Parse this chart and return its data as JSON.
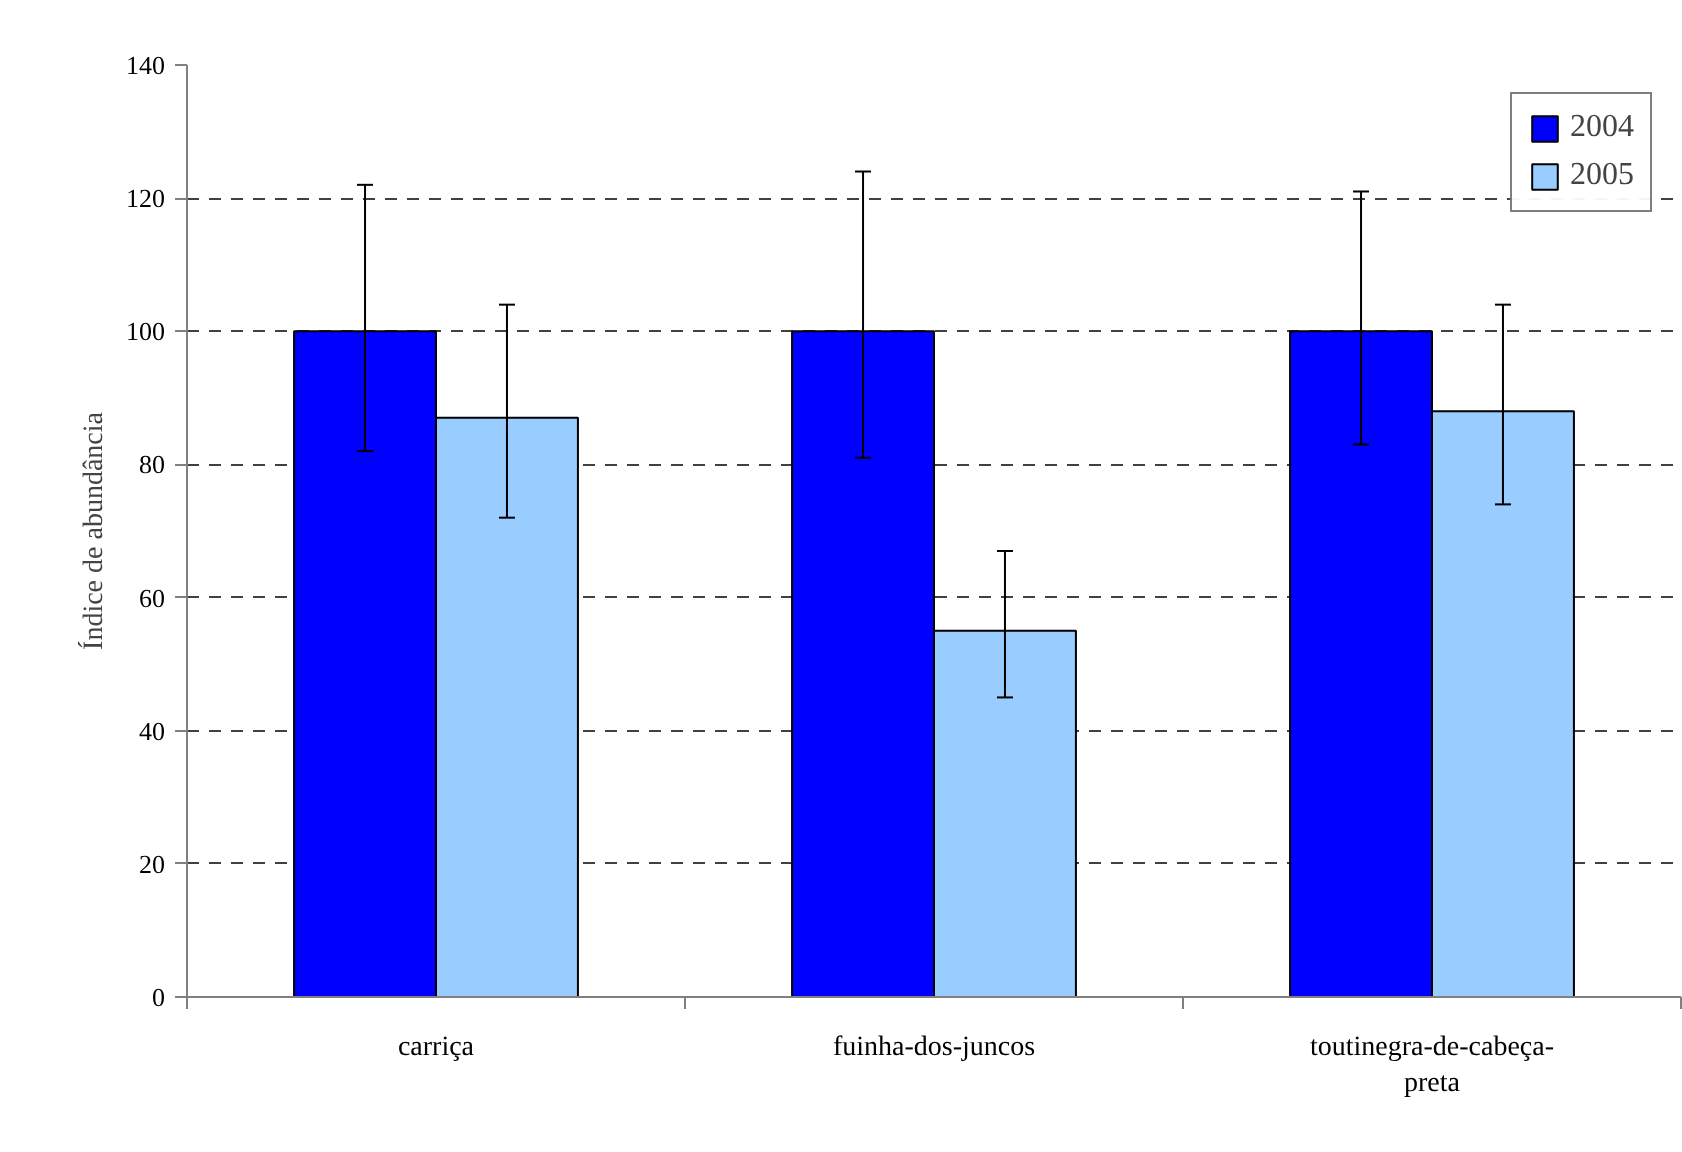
{
  "chart_data": {
    "type": "bar",
    "ylabel": "Índice de abundância",
    "categories": [
      "carriça",
      "fuinha-dos-juncos",
      "toutinegra-de-cabeça-preta"
    ],
    "series": [
      {
        "name": "2004",
        "color": "#0000ff",
        "values": [
          100,
          100,
          100
        ],
        "errors": [
          [
            82,
            122
          ],
          [
            81,
            124
          ],
          [
            83,
            121
          ]
        ]
      },
      {
        "name": "2005",
        "color": "#99ccff",
        "values": [
          87,
          55,
          88
        ],
        "errors": [
          [
            72,
            104
          ],
          [
            45,
            67
          ],
          [
            74,
            104
          ]
        ]
      }
    ],
    "ylim": [
      0,
      140
    ],
    "yticks": [
      0,
      20,
      40,
      60,
      80,
      100,
      120,
      140
    ],
    "grid": "y",
    "legend": "top right"
  }
}
